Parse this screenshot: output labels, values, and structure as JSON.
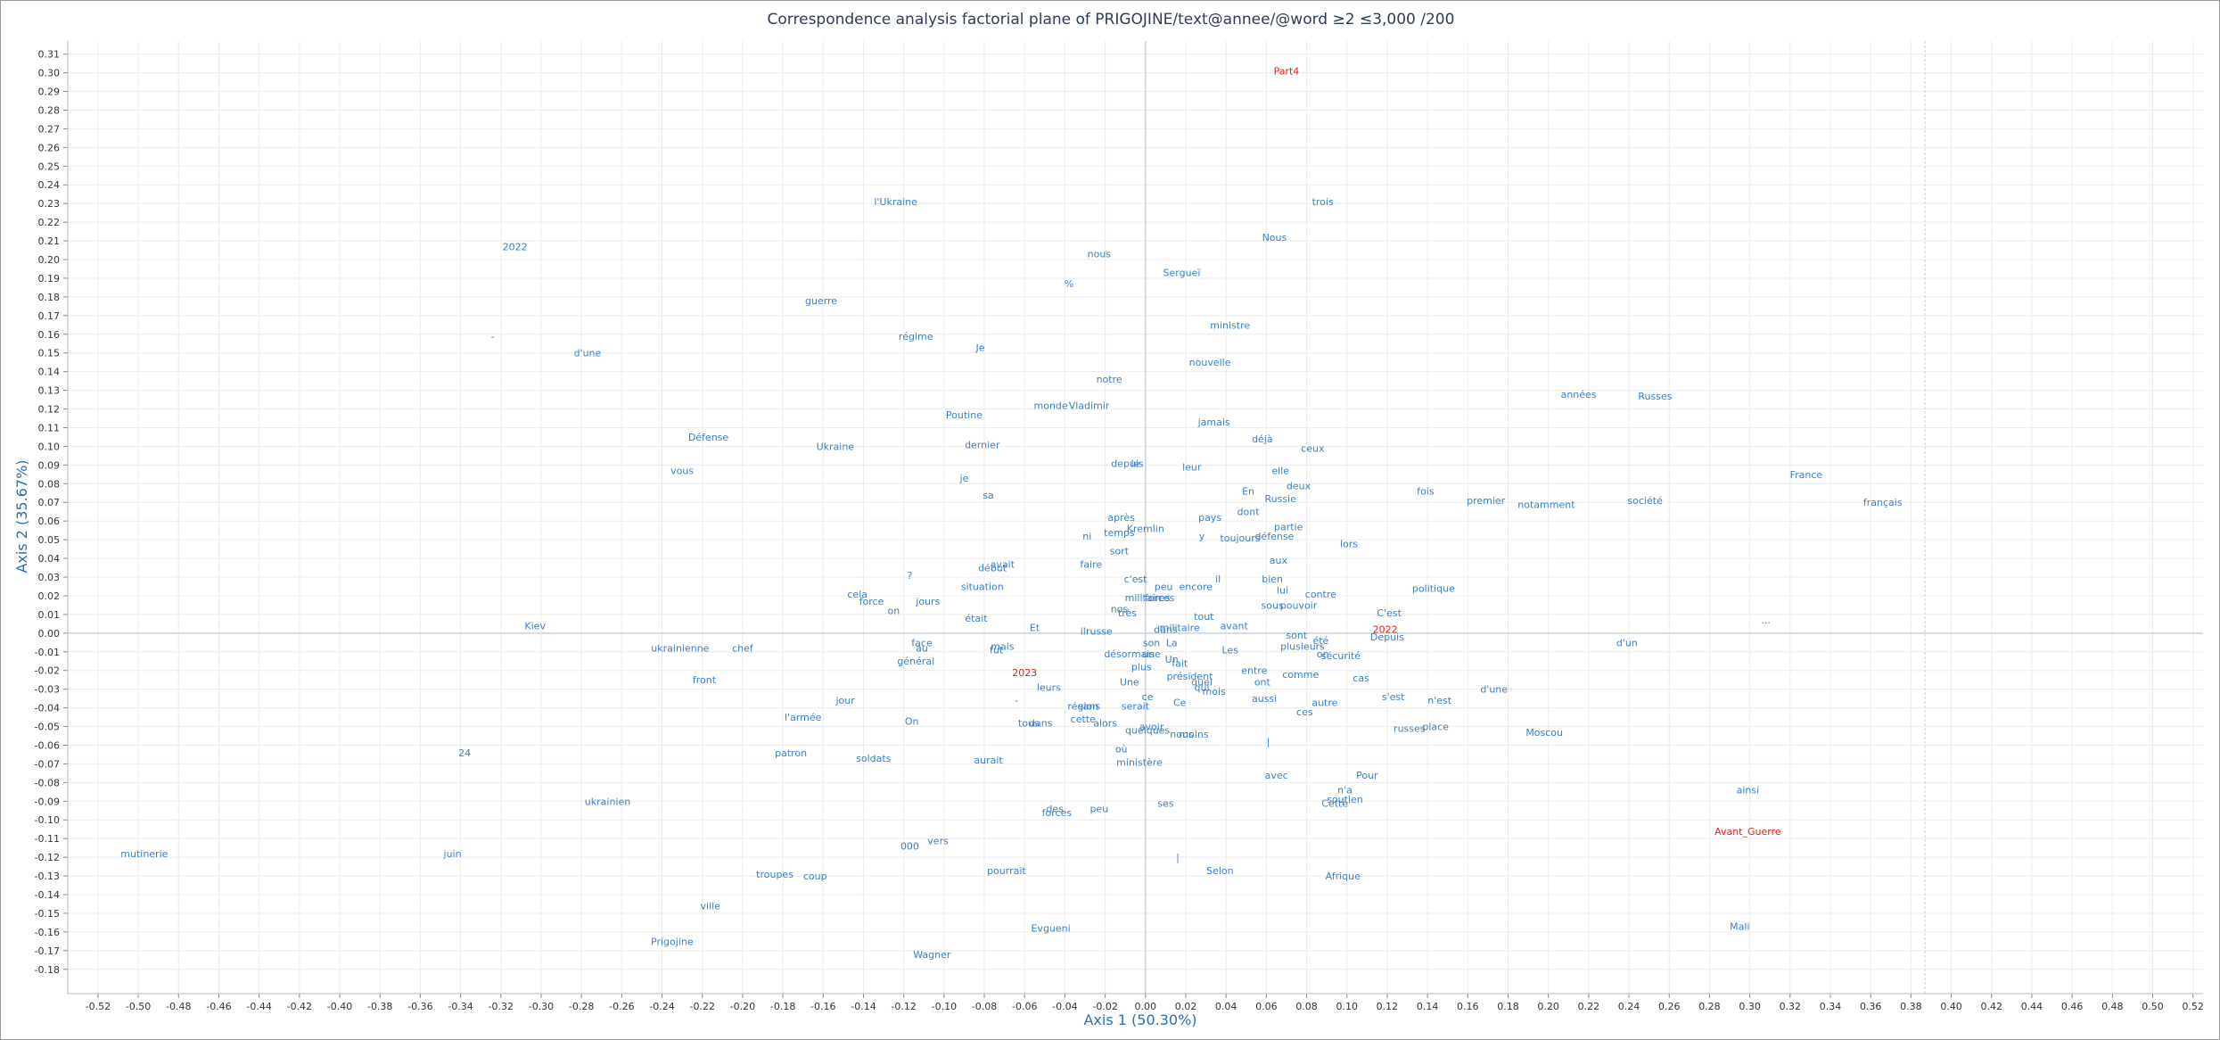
{
  "chart_data": {
    "type": "scatter",
    "title": "Correspondence analysis factorial plane of PRIGOJINE/text@annee/@word ≥2 ≤3,000 /200",
    "xlabel": "Axis 1 (50.30%)",
    "ylabel": "Axis 2 (35.67%)",
    "xlim": [
      -0.535,
      0.525
    ],
    "ylim": [
      -0.193,
      0.317
    ],
    "x_ticks": [
      -0.52,
      -0.5,
      -0.48,
      -0.46,
      -0.44,
      -0.42,
      -0.4,
      -0.38,
      -0.36,
      -0.34,
      -0.32,
      -0.3,
      -0.28,
      -0.26,
      -0.24,
      -0.22,
      -0.2,
      -0.18,
      -0.16,
      -0.14,
      -0.12,
      -0.1,
      -0.08,
      -0.06,
      -0.04,
      -0.02,
      0.0,
      0.02,
      0.04,
      0.06,
      0.08,
      0.1,
      0.12,
      0.14,
      0.16,
      0.18,
      0.2,
      0.22,
      0.24,
      0.26,
      0.28,
      0.3,
      0.32,
      0.34,
      0.36,
      0.38,
      0.4,
      0.42,
      0.44,
      0.46,
      0.48,
      0.5,
      0.52
    ],
    "y_ticks": [
      0.31,
      0.3,
      0.29,
      0.28,
      0.27,
      0.26,
      0.25,
      0.24,
      0.23,
      0.22,
      0.21,
      0.2,
      0.19,
      0.18,
      0.17,
      0.16,
      0.15,
      0.14,
      0.13,
      0.12,
      0.11,
      0.1,
      0.09,
      0.08,
      0.07,
      0.06,
      0.05,
      0.04,
      0.03,
      0.02,
      0.01,
      0.0,
      -0.01,
      -0.02,
      -0.03,
      -0.04,
      -0.05,
      -0.06,
      -0.07,
      -0.08,
      -0.09,
      -0.1,
      -0.11,
      -0.12,
      -0.13,
      -0.14,
      -0.15,
      -0.16,
      -0.17,
      -0.18
    ],
    "grid": true,
    "reference_line_x": 0.387,
    "colors": {
      "words": "#3a7fc8",
      "parts": "#e0201d",
      "ticks": "#333333",
      "axis_title": "#2a6fb5",
      "title": "#2b3d57",
      "grid": "#ececec",
      "zero_line": "#c9d0dc"
    },
    "parts": [
      {
        "label": "Part4",
        "x": 0.07,
        "y": 0.301
      },
      {
        "label": "2022",
        "x": 0.119,
        "y": 0.002
      },
      {
        "label": "2023",
        "x": -0.06,
        "y": -0.021
      },
      {
        "label": "Avant_Guerre",
        "x": 0.299,
        "y": -0.106
      }
    ],
    "points": [
      {
        "label": "trois",
        "x": 0.088,
        "y": 0.231
      },
      {
        "label": "l'Ukraine",
        "x": -0.124,
        "y": 0.231
      },
      {
        "label": "Nous",
        "x": 0.064,
        "y": 0.212
      },
      {
        "label": "2022",
        "x": -0.313,
        "y": 0.207
      },
      {
        "label": "nous",
        "x": -0.023,
        "y": 0.203
      },
      {
        "label": "Sergueï",
        "x": 0.018,
        "y": 0.193
      },
      {
        "label": "%",
        "x": -0.038,
        "y": 0.187
      },
      {
        "label": "guerre",
        "x": -0.161,
        "y": 0.178
      },
      {
        "label": "ministre",
        "x": 0.042,
        "y": 0.165
      },
      {
        "label": "régime",
        "x": -0.114,
        "y": 0.159
      },
      {
        "label": "-",
        "x": -0.324,
        "y": 0.159
      },
      {
        "label": "Je",
        "x": -0.082,
        "y": 0.153
      },
      {
        "label": "d'une",
        "x": -0.277,
        "y": 0.15
      },
      {
        "label": "nouvelle",
        "x": 0.032,
        "y": 0.145
      },
      {
        "label": "notre",
        "x": -0.018,
        "y": 0.136
      },
      {
        "label": "années",
        "x": 0.215,
        "y": 0.128
      },
      {
        "label": "Russes",
        "x": 0.253,
        "y": 0.127
      },
      {
        "label": "monde",
        "x": -0.047,
        "y": 0.122
      },
      {
        "label": "Vladimir",
        "x": -0.028,
        "y": 0.122
      },
      {
        "label": "Poutine",
        "x": -0.09,
        "y": 0.117
      },
      {
        "label": "jamais",
        "x": 0.034,
        "y": 0.113
      },
      {
        "label": "Défense",
        "x": -0.217,
        "y": 0.105
      },
      {
        "label": "déjà",
        "x": 0.058,
        "y": 0.104
      },
      {
        "label": "Ukraine",
        "x": -0.154,
        "y": 0.1
      },
      {
        "label": "dernier",
        "x": -0.081,
        "y": 0.101
      },
      {
        "label": "ceux",
        "x": 0.083,
        "y": 0.099
      },
      {
        "label": "depuis",
        "x": -0.009,
        "y": 0.091
      },
      {
        "label": "le",
        "x": -0.005,
        "y": 0.091
      },
      {
        "label": "leur",
        "x": 0.023,
        "y": 0.089
      },
      {
        "label": "vous",
        "x": -0.23,
        "y": 0.087
      },
      {
        "label": "elle",
        "x": 0.067,
        "y": 0.087
      },
      {
        "label": "France",
        "x": 0.328,
        "y": 0.085
      },
      {
        "label": "je",
        "x": -0.09,
        "y": 0.083
      },
      {
        "label": "deux",
        "x": 0.076,
        "y": 0.079
      },
      {
        "label": "En",
        "x": 0.051,
        "y": 0.076
      },
      {
        "label": "fois",
        "x": 0.139,
        "y": 0.076
      },
      {
        "label": "sa",
        "x": -0.078,
        "y": 0.074
      },
      {
        "label": "Russie",
        "x": 0.067,
        "y": 0.072
      },
      {
        "label": "premier",
        "x": 0.169,
        "y": 0.071
      },
      {
        "label": "notamment",
        "x": 0.199,
        "y": 0.069
      },
      {
        "label": "société",
        "x": 0.248,
        "y": 0.071
      },
      {
        "label": "français",
        "x": 0.366,
        "y": 0.07
      },
      {
        "label": "dont",
        "x": 0.051,
        "y": 0.065
      },
      {
        "label": "pays",
        "x": 0.032,
        "y": 0.062
      },
      {
        "label": "après",
        "x": -0.012,
        "y": 0.062
      },
      {
        "label": "partie",
        "x": 0.071,
        "y": 0.057
      },
      {
        "label": "Kremlin",
        "x": 0.0,
        "y": 0.056
      },
      {
        "label": "temps",
        "x": -0.013,
        "y": 0.054
      },
      {
        "label": "ni",
        "x": -0.029,
        "y": 0.052
      },
      {
        "label": "y",
        "x": 0.028,
        "y": 0.052
      },
      {
        "label": "toujours",
        "x": 0.047,
        "y": 0.051
      },
      {
        "label": "défense",
        "x": 0.064,
        "y": 0.052
      },
      {
        "label": "lors",
        "x": 0.101,
        "y": 0.048
      },
      {
        "label": "sort",
        "x": -0.013,
        "y": 0.044
      },
      {
        "label": "aux",
        "x": 0.066,
        "y": 0.039
      },
      {
        "label": "faire",
        "x": -0.027,
        "y": 0.037
      },
      {
        "label": "avait",
        "x": -0.071,
        "y": 0.037
      },
      {
        "label": "début",
        "x": -0.076,
        "y": 0.035
      },
      {
        "label": "?",
        "x": -0.117,
        "y": 0.031
      },
      {
        "label": "c'est",
        "x": -0.005,
        "y": 0.029
      },
      {
        "label": "il",
        "x": 0.036,
        "y": 0.029
      },
      {
        "label": "bien",
        "x": 0.063,
        "y": 0.029
      },
      {
        "label": "peu",
        "x": 0.009,
        "y": 0.025
      },
      {
        "label": "encore",
        "x": 0.025,
        "y": 0.025
      },
      {
        "label": "situation",
        "x": -0.081,
        "y": 0.025
      },
      {
        "label": "politique",
        "x": 0.143,
        "y": 0.024
      },
      {
        "label": "lui",
        "x": 0.068,
        "y": 0.023
      },
      {
        "label": "contre",
        "x": 0.087,
        "y": 0.021
      },
      {
        "label": "cela",
        "x": -0.143,
        "y": 0.021
      },
      {
        "label": "militaires",
        "x": 0.001,
        "y": 0.019
      },
      {
        "label": "forces",
        "x": 0.007,
        "y": 0.019
      },
      {
        "label": "force",
        "x": -0.136,
        "y": 0.017
      },
      {
        "label": "jours",
        "x": -0.108,
        "y": 0.017
      },
      {
        "label": "sous",
        "x": 0.063,
        "y": 0.015
      },
      {
        "label": "pouvoir",
        "x": 0.076,
        "y": 0.015
      },
      {
        "label": "nos",
        "x": -0.013,
        "y": 0.013
      },
      {
        "label": "très",
        "x": -0.009,
        "y": 0.011
      },
      {
        "label": "on",
        "x": -0.125,
        "y": 0.012
      },
      {
        "label": "C'est",
        "x": 0.121,
        "y": 0.011
      },
      {
        "label": "tout",
        "x": 0.029,
        "y": 0.009
      },
      {
        "label": "était",
        "x": -0.084,
        "y": 0.008
      },
      {
        "label": "avant",
        "x": 0.044,
        "y": 0.004
      },
      {
        "label": "militaire",
        "x": 0.017,
        "y": 0.003
      },
      {
        "label": "Kiev",
        "x": -0.303,
        "y": 0.004
      },
      {
        "label": "Et",
        "x": -0.055,
        "y": 0.003
      },
      {
        "label": "dans",
        "x": 0.01,
        "y": 0.002
      },
      {
        "label": "il",
        "x": -0.031,
        "y": 0.001
      },
      {
        "label": "russe",
        "x": -0.023,
        "y": 0.001
      },
      {
        "label": "sont",
        "x": 0.075,
        "y": -0.001
      },
      {
        "label": "Depuis",
        "x": 0.12,
        "y": -0.002
      },
      {
        "label": "été",
        "x": 0.087,
        "y": -0.004
      },
      {
        "label": "plusieurs",
        "x": 0.078,
        "y": -0.007
      },
      {
        "label": "d'un",
        "x": 0.239,
        "y": -0.005
      },
      {
        "label": "face",
        "x": -0.111,
        "y": -0.005
      },
      {
        "label": "son",
        "x": 0.003,
        "y": -0.005
      },
      {
        "label": "La",
        "x": 0.013,
        "y": -0.005
      },
      {
        "label": "au",
        "x": -0.111,
        "y": -0.008
      },
      {
        "label": "mais",
        "x": -0.071,
        "y": -0.007
      },
      {
        "label": "fut",
        "x": -0.074,
        "y": -0.009
      },
      {
        "label": "ukrainienne",
        "x": -0.231,
        "y": -0.008
      },
      {
        "label": "chef",
        "x": -0.2,
        "y": -0.008
      },
      {
        "label": "Les",
        "x": 0.042,
        "y": -0.009
      },
      {
        "label": "désormais",
        "x": -0.008,
        "y": -0.011
      },
      {
        "label": "une",
        "x": 0.003,
        "y": -0.011
      },
      {
        "label": "sécurité",
        "x": 0.097,
        "y": -0.012
      },
      {
        "label": "on",
        "x": 0.088,
        "y": -0.011
      },
      {
        "label": "général",
        "x": -0.114,
        "y": -0.015
      },
      {
        "label": "Un",
        "x": 0.013,
        "y": -0.014
      },
      {
        "label": "fait",
        "x": 0.017,
        "y": -0.016
      },
      {
        "label": "plus",
        "x": -0.002,
        "y": -0.018
      },
      {
        "label": "entre",
        "x": 0.054,
        "y": -0.02
      },
      {
        "label": "comme",
        "x": 0.077,
        "y": -0.022
      },
      {
        "label": "président",
        "x": 0.022,
        "y": -0.023
      },
      {
        "label": "cas",
        "x": 0.107,
        "y": -0.024
      },
      {
        "label": "front",
        "x": -0.219,
        "y": -0.025
      },
      {
        "label": "Une",
        "x": -0.008,
        "y": -0.026
      },
      {
        "label": "quel",
        "x": 0.028,
        "y": -0.026
      },
      {
        "label": "ont",
        "x": 0.058,
        "y": -0.026
      },
      {
        "label": "qui",
        "x": 0.028,
        "y": -0.029
      },
      {
        "label": "leurs",
        "x": -0.048,
        "y": -0.029
      },
      {
        "label": "mois",
        "x": 0.034,
        "y": -0.031
      },
      {
        "label": "d'une",
        "x": 0.173,
        "y": -0.03
      },
      {
        "label": "s'est",
        "x": 0.123,
        "y": -0.034
      },
      {
        "label": "aussi",
        "x": 0.059,
        "y": -0.035
      },
      {
        "label": "n'est",
        "x": 0.146,
        "y": -0.036
      },
      {
        "label": "jour",
        "x": -0.149,
        "y": -0.036
      },
      {
        "label": "-",
        "x": -0.064,
        "y": -0.036
      },
      {
        "label": "ce",
        "x": 0.001,
        "y": -0.034
      },
      {
        "label": "Ce",
        "x": 0.017,
        "y": -0.037
      },
      {
        "label": "autre",
        "x": 0.089,
        "y": -0.037
      },
      {
        "label": "région",
        "x": -0.031,
        "y": -0.039
      },
      {
        "label": "sans",
        "x": -0.028,
        "y": -0.039
      },
      {
        "label": "serait",
        "x": -0.005,
        "y": -0.039
      },
      {
        "label": "ces",
        "x": 0.079,
        "y": -0.042
      },
      {
        "label": "l'armée",
        "x": -0.17,
        "y": -0.045
      },
      {
        "label": "cette",
        "x": -0.031,
        "y": -0.046
      },
      {
        "label": "alors",
        "x": -0.02,
        "y": -0.048
      },
      {
        "label": "On",
        "x": -0.116,
        "y": -0.047
      },
      {
        "label": "tous",
        "x": -0.058,
        "y": -0.048
      },
      {
        "label": "dans",
        "x": -0.052,
        "y": -0.048
      },
      {
        "label": "avoir",
        "x": 0.003,
        "y": -0.05
      },
      {
        "label": "quelques",
        "x": 0.001,
        "y": -0.052
      },
      {
        "label": "russes",
        "x": 0.131,
        "y": -0.051
      },
      {
        "label": "place",
        "x": 0.144,
        "y": -0.05
      },
      {
        "label": "Moscou",
        "x": 0.198,
        "y": -0.053
      },
      {
        "label": "nous",
        "x": 0.018,
        "y": -0.054
      },
      {
        "label": "moins",
        "x": 0.024,
        "y": -0.054
      },
      {
        "label": "24",
        "x": -0.338,
        "y": -0.064
      },
      {
        "label": "où",
        "x": -0.012,
        "y": -0.062
      },
      {
        "label": "patron",
        "x": -0.176,
        "y": -0.064
      },
      {
        "label": "soldats",
        "x": -0.135,
        "y": -0.067
      },
      {
        "label": "aurait",
        "x": -0.078,
        "y": -0.068
      },
      {
        "label": "ministère",
        "x": -0.003,
        "y": -0.069
      },
      {
        "label": "avec",
        "x": 0.065,
        "y": -0.076
      },
      {
        "label": "Pour",
        "x": 0.11,
        "y": -0.076
      },
      {
        "label": "n'a",
        "x": 0.099,
        "y": -0.084
      },
      {
        "label": "ainsi",
        "x": 0.299,
        "y": -0.084
      },
      {
        "label": "soutien",
        "x": 0.099,
        "y": -0.089
      },
      {
        "label": "Cette",
        "x": 0.094,
        "y": -0.091
      },
      {
        "label": "ukrainien",
        "x": -0.267,
        "y": -0.09
      },
      {
        "label": "ses",
        "x": 0.01,
        "y": -0.091
      },
      {
        "label": "des",
        "x": -0.045,
        "y": -0.094
      },
      {
        "label": "peu",
        "x": -0.023,
        "y": -0.094
      },
      {
        "label": "forces",
        "x": -0.044,
        "y": -0.096
      },
      {
        "label": "vers",
        "x": -0.103,
        "y": -0.111
      },
      {
        "label": "000",
        "x": -0.117,
        "y": -0.114
      },
      {
        "label": "mutinerie",
        "x": -0.497,
        "y": -0.118
      },
      {
        "label": "juin",
        "x": -0.344,
        "y": -0.118
      },
      {
        "label": "|",
        "x": 0.016,
        "y": -0.12
      },
      {
        "label": "pourrait",
        "x": -0.069,
        "y": -0.127
      },
      {
        "label": "Selon",
        "x": 0.037,
        "y": -0.127
      },
      {
        "label": "troupes",
        "x": -0.184,
        "y": -0.129
      },
      {
        "label": "coup",
        "x": -0.164,
        "y": -0.13
      },
      {
        "label": "Afrique",
        "x": 0.098,
        "y": -0.13
      },
      {
        "label": "ville",
        "x": -0.216,
        "y": -0.146
      },
      {
        "label": "Evgueni",
        "x": -0.047,
        "y": -0.158
      },
      {
        "label": "Mali",
        "x": 0.295,
        "y": -0.157
      },
      {
        "label": "Prigojine",
        "x": -0.235,
        "y": -0.165
      },
      {
        "label": "Wagner",
        "x": -0.106,
        "y": -0.172
      },
      {
        "label": "...",
        "x": 0.308,
        "y": 0.007
      },
      {
        "label": "|",
        "x": 0.061,
        "y": -0.058
      }
    ]
  }
}
